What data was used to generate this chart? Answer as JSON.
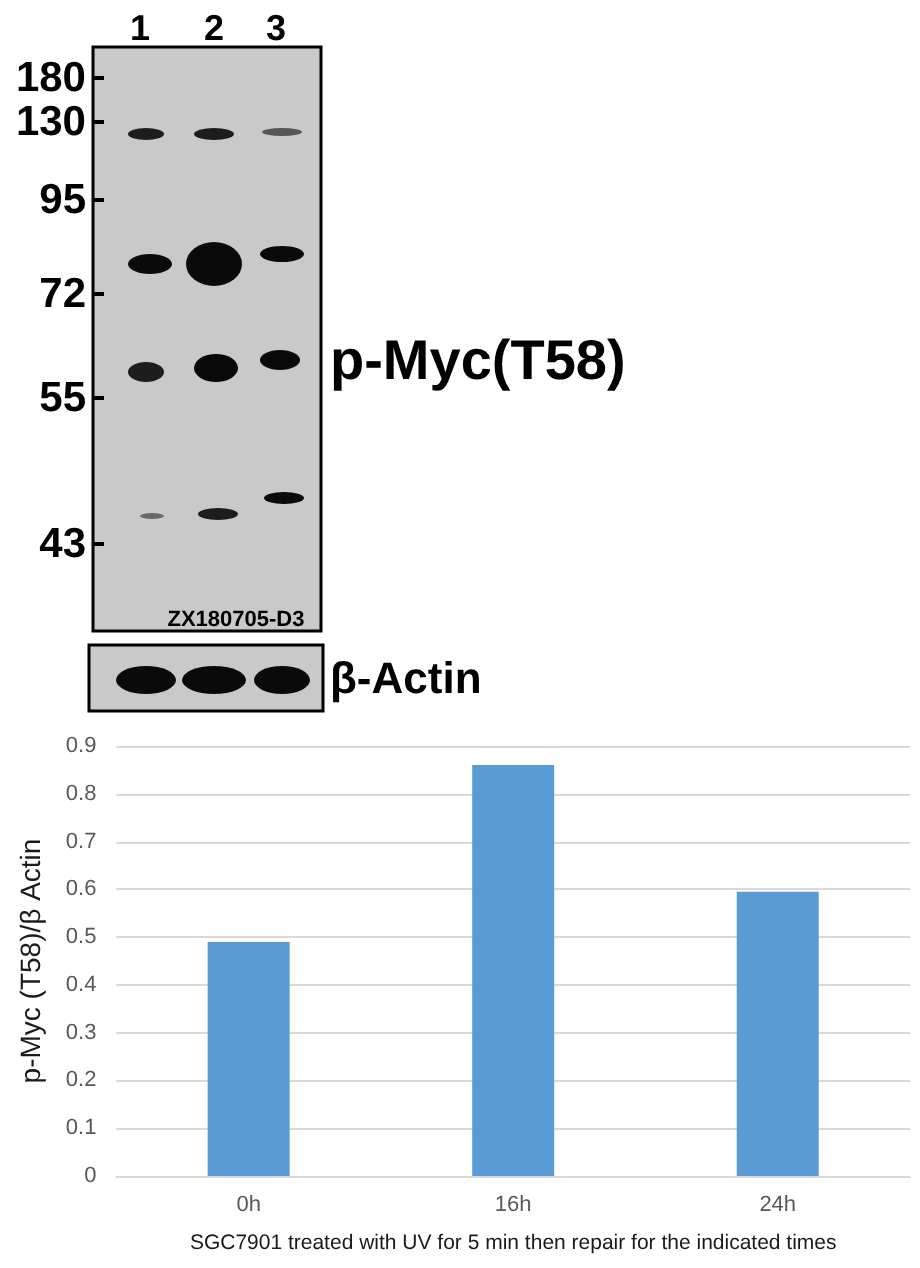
{
  "chart_data": [
    {
      "type": "other",
      "annotations": [
        "1",
        "2",
        "3",
        "180",
        "130",
        "95",
        "72",
        "55",
        "43",
        "p-Myc(T58)",
        "ZX180705-D3",
        "β-Actin"
      ]
    },
    {
      "type": "bar",
      "categories": [
        "0h",
        "16h",
        "24h"
      ],
      "values": [
        0.49,
        0.86,
        0.595
      ],
      "color": "#5b9bd5",
      "xlabel": "SGC7901 treated with UV for 5 min then repair for the indicated times",
      "ylabel": "p-Myc (T58)/β Actin",
      "ylim": [
        0,
        0.9
      ],
      "yticks": [
        0,
        0.1,
        0.2,
        0.3,
        0.4,
        0.5,
        0.6,
        0.7,
        0.8,
        0.9
      ],
      "grid": "y"
    }
  ]
}
